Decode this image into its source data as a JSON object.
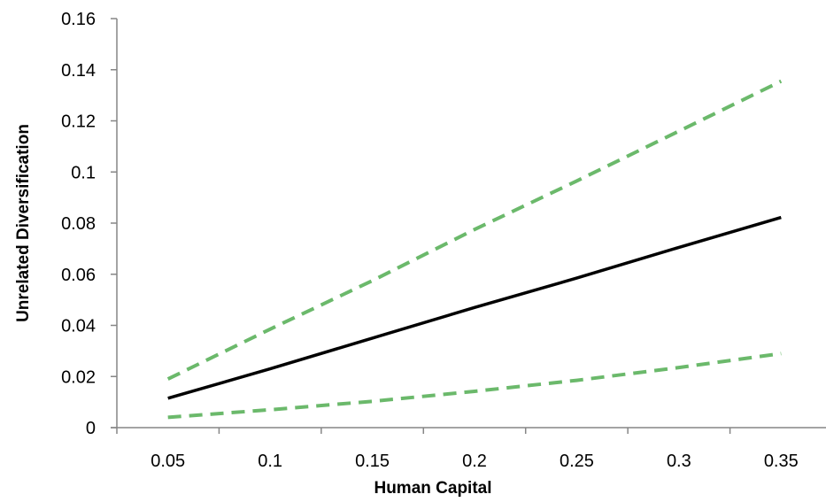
{
  "chart_data": {
    "type": "line",
    "xlabel": "Human Capital",
    "ylabel": "Unrelated Diversification",
    "x_ticks": [
      "0.05",
      "0.1",
      "0.15",
      "0.2",
      "0.25",
      "0.3",
      "0.35"
    ],
    "y_ticks": [
      "0",
      "0.02",
      "0.04",
      "0.06",
      "0.08",
      "0.1",
      "0.12",
      "0.14",
      "0.16"
    ],
    "xlim": [
      0.025,
      0.375
    ],
    "ylim": [
      0,
      0.16
    ],
    "grid": false,
    "legend": "none",
    "series": [
      {
        "style": "dashed",
        "color": "#6bb96b",
        "x": [
          0.05,
          0.1,
          0.15,
          0.2,
          0.25,
          0.3,
          0.35
        ],
        "y": [
          0.019,
          0.0385,
          0.0575,
          0.0775,
          0.0965,
          0.116,
          0.1355
        ]
      },
      {
        "style": "solid",
        "color": "#000000",
        "x": [
          0.05,
          0.1,
          0.15,
          0.2,
          0.25,
          0.3,
          0.35
        ],
        "y": [
          0.0115,
          0.023,
          0.035,
          0.047,
          0.0585,
          0.0705,
          0.0822
        ]
      },
      {
        "style": "dashed",
        "color": "#6bb96b",
        "x": [
          0.05,
          0.1,
          0.15,
          0.2,
          0.25,
          0.3,
          0.35
        ],
        "y": [
          0.004,
          0.007,
          0.0103,
          0.0142,
          0.0185,
          0.0235,
          0.029
        ]
      }
    ]
  }
}
